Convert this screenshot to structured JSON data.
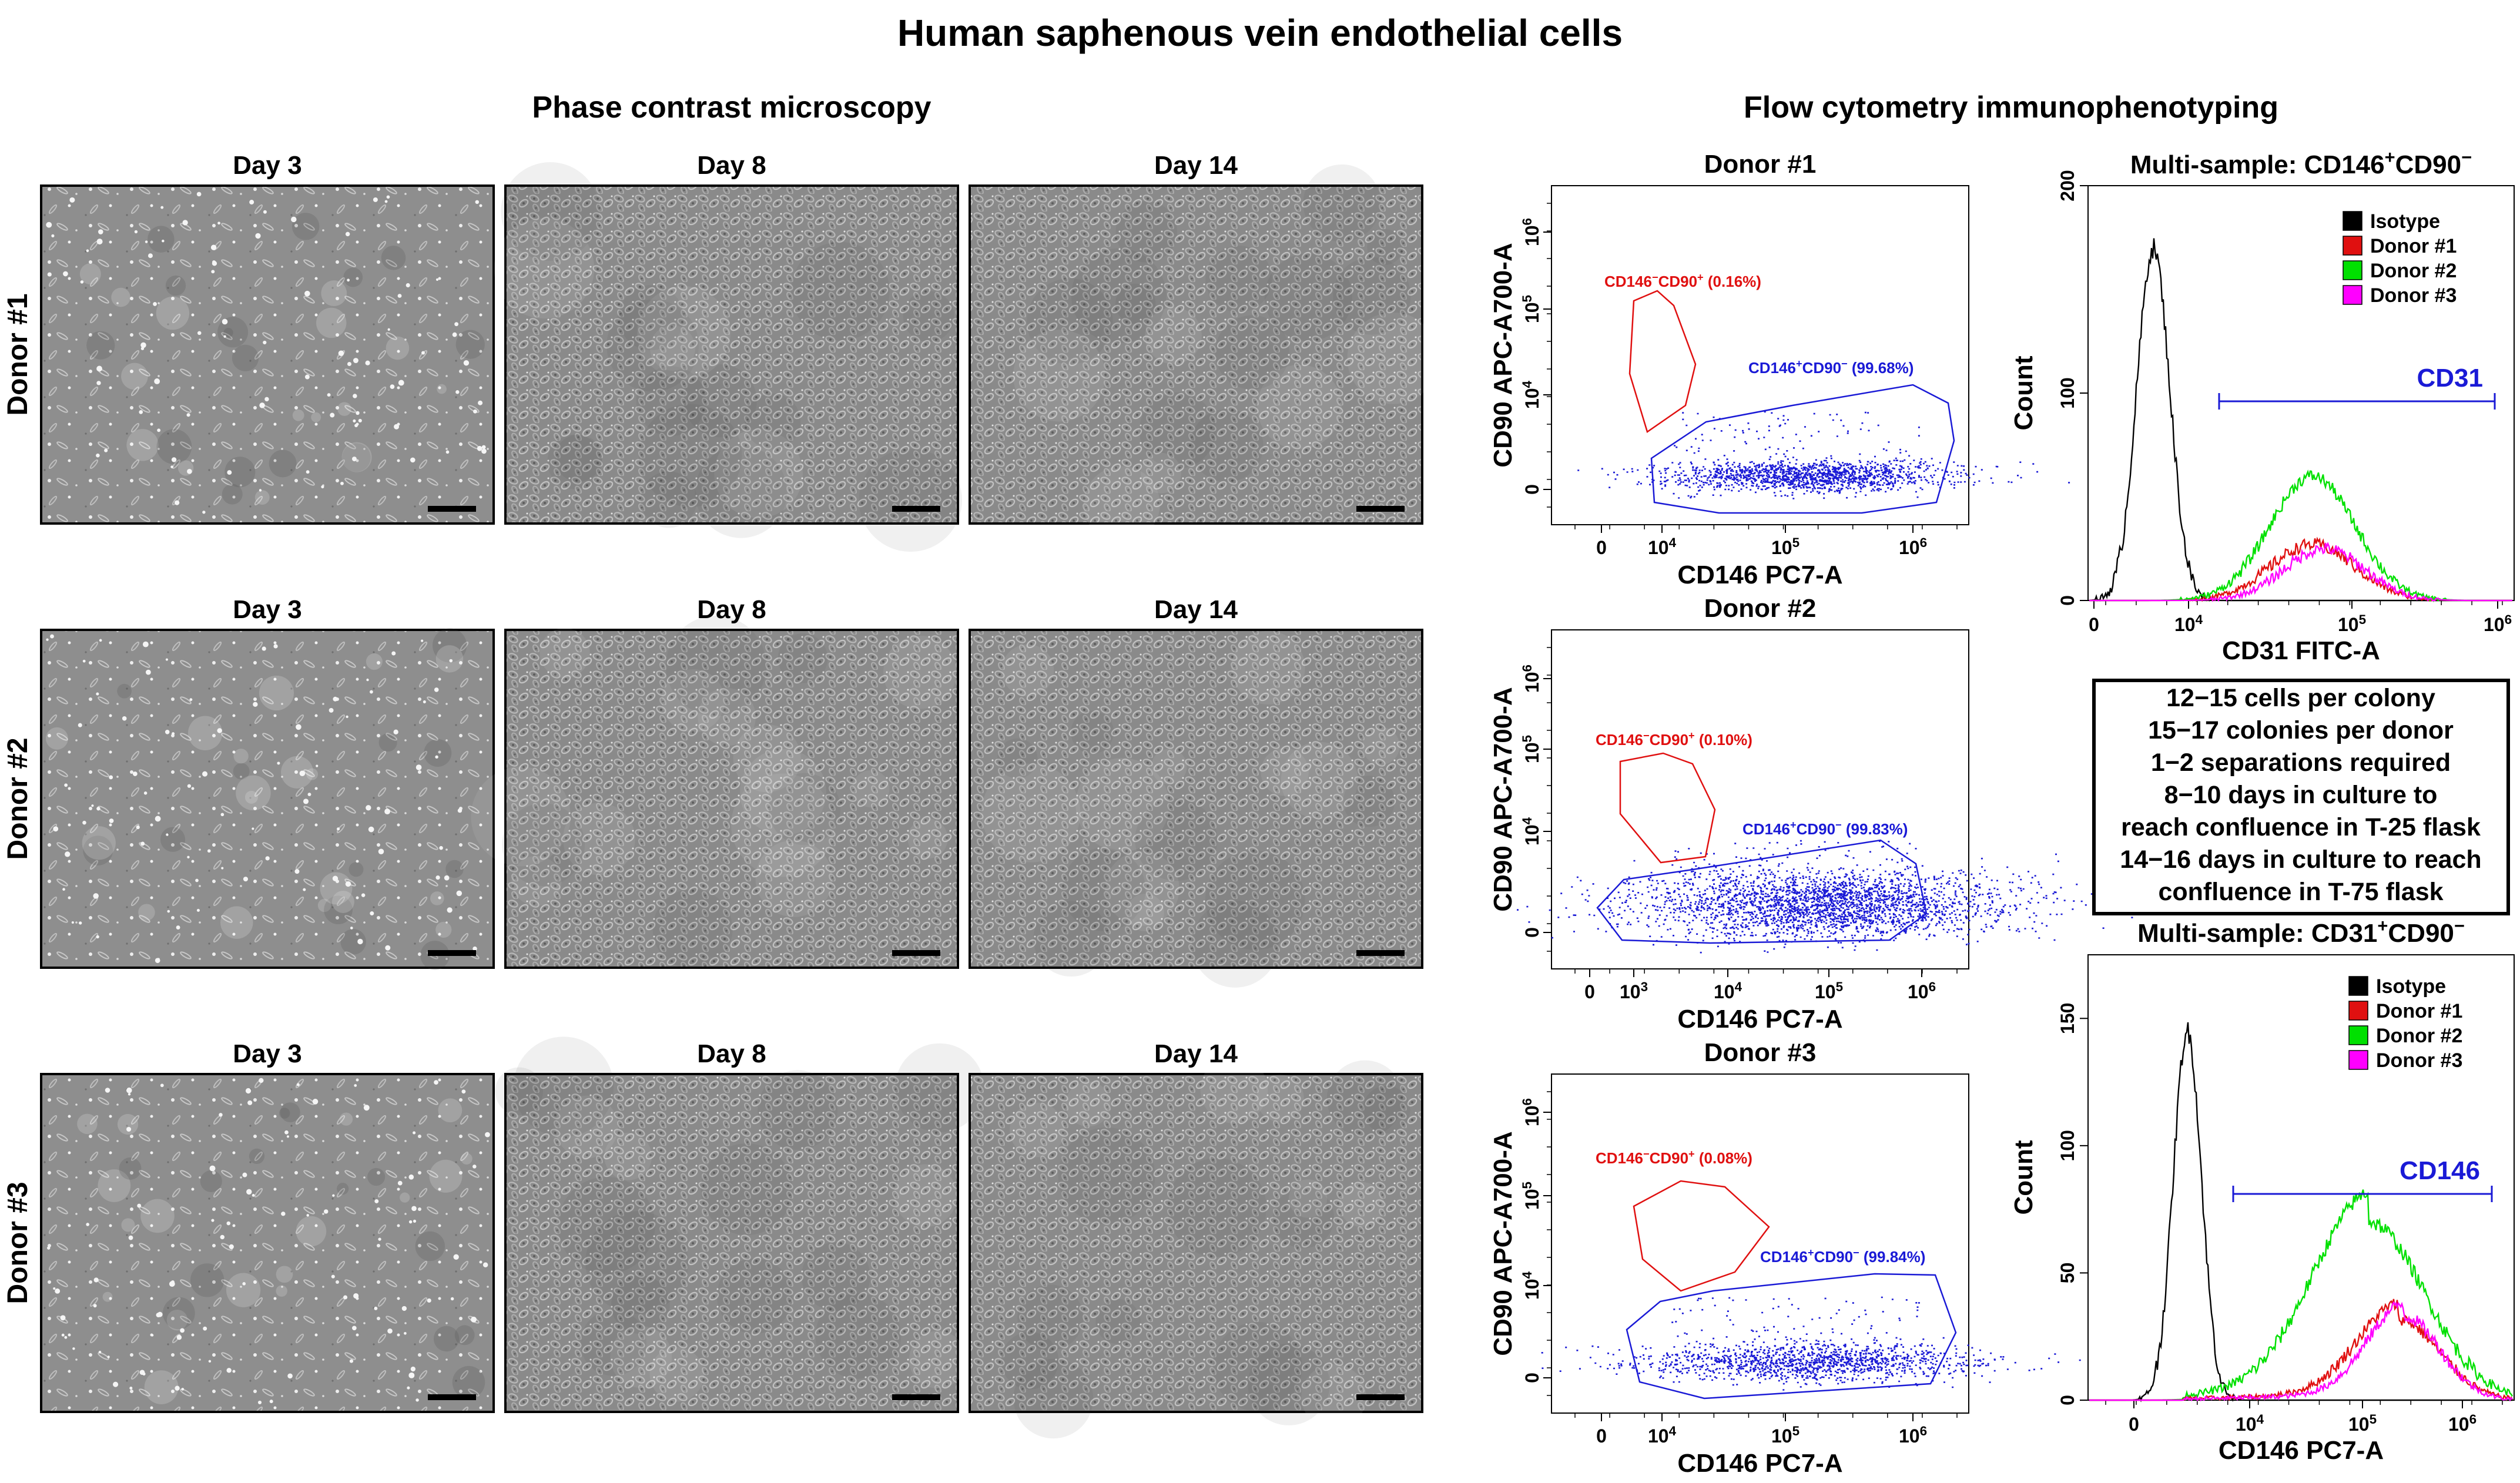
{
  "figure": {
    "title": "Human saphenous vein endothelial cells",
    "left_section_title": "Phase contrast microscopy",
    "right_section_title": "Flow cytometry immunophenotyping"
  },
  "microscopy": {
    "day_labels": [
      "Day 3",
      "Day 8",
      "Day 14"
    ],
    "rows": [
      {
        "donor": "Donor #1",
        "densities": [
          0.22,
          0.72,
          0.95
        ]
      },
      {
        "donor": "Donor #2",
        "densities": [
          0.28,
          0.95,
          0.95
        ]
      },
      {
        "donor": "Donor #3",
        "densities": [
          0.25,
          0.9,
          0.95
        ]
      }
    ]
  },
  "colors": {
    "blue": "#1a1ad6",
    "red": "#e01010",
    "green": "#00e000",
    "magenta": "#ff00ff",
    "black": "#000000"
  },
  "scatter_panels": [
    {
      "title": "Donor #1",
      "xlabel": "CD146 PC7-A",
      "ylabel": "CD90 APC-A700-A",
      "xticks": [
        {
          "base": "0",
          "exp": ""
        },
        {
          "base": "10",
          "exp": "4"
        },
        {
          "base": "10",
          "exp": "5"
        },
        {
          "base": "10",
          "exp": "6"
        }
      ],
      "yticks": [
        {
          "base": "0",
          "exp": ""
        },
        {
          "base": "10",
          "exp": "4"
        },
        {
          "base": "10",
          "exp": "5"
        },
        {
          "base": "10",
          "exp": "6"
        }
      ],
      "gate_red": {
        "neg": "CD146",
        "pos": "CD90",
        "pct": "(0.16%)"
      },
      "gate_blue": {
        "pos": "CD146",
        "neg": "CD90",
        "pct": "(99.68%)"
      }
    },
    {
      "title": "Donor #2",
      "xlabel": "CD146 PC7-A",
      "ylabel": "CD90 APC-A700-A",
      "xticks": [
        {
          "base": "0",
          "exp": ""
        },
        {
          "base": "10",
          "exp": "3"
        },
        {
          "base": "10",
          "exp": "4"
        },
        {
          "base": "10",
          "exp": "5"
        },
        {
          "base": "10",
          "exp": "6"
        }
      ],
      "yticks": [
        {
          "base": "0",
          "exp": ""
        },
        {
          "base": "10",
          "exp": "4"
        },
        {
          "base": "10",
          "exp": "5"
        },
        {
          "base": "10",
          "exp": "6"
        }
      ],
      "gate_red": {
        "neg": "CD146",
        "pos": "CD90",
        "pct": "(0.10%)"
      },
      "gate_blue": {
        "pos": "CD146",
        "neg": "CD90",
        "pct": "(99.83%)"
      }
    },
    {
      "title": "Donor #3",
      "xlabel": "CD146 PC7-A",
      "ylabel": "CD90 APC-A700-A",
      "xticks": [
        {
          "base": "0",
          "exp": ""
        },
        {
          "base": "10",
          "exp": "4"
        },
        {
          "base": "10",
          "exp": "5"
        },
        {
          "base": "10",
          "exp": "6"
        }
      ],
      "yticks": [
        {
          "base": "0",
          "exp": ""
        },
        {
          "base": "10",
          "exp": "4"
        },
        {
          "base": "10",
          "exp": "5"
        },
        {
          "base": "10",
          "exp": "6"
        }
      ],
      "gate_red": {
        "neg": "CD146",
        "pos": "CD90",
        "pct": "(0.08%)"
      },
      "gate_blue": {
        "pos": "CD146",
        "neg": "CD90",
        "pct": "(99.84%)"
      }
    }
  ],
  "histograms": [
    {
      "title": {
        "m1": "CD146",
        "s1": "+",
        "m2": "CD90",
        "s2": "−",
        "prefix": "Multi-sample: "
      },
      "xlabel": "CD31 FITC-A",
      "ylabel": "Count",
      "yticks": [
        "0",
        "100",
        "200"
      ],
      "ylim": [
        0,
        200
      ],
      "xticks": [
        {
          "base": "0",
          "exp": ""
        },
        {
          "base": "10",
          "exp": "4"
        },
        {
          "base": "10",
          "exp": "5"
        },
        {
          "base": "10",
          "exp": "6"
        }
      ],
      "marker_label": "CD31",
      "legend": [
        "Isotype",
        "Donor #1",
        "Donor #2",
        "Donor #3"
      ]
    },
    {
      "title": {
        "m1": "CD31",
        "s1": "+",
        "m2": "CD90",
        "s2": "−",
        "prefix": "Multi-sample: "
      },
      "xlabel": "CD146 PC7-A",
      "ylabel": "Count",
      "yticks": [
        "0",
        "50",
        "100",
        "150"
      ],
      "ylim": [
        0,
        175
      ],
      "xticks": [
        {
          "base": "0",
          "exp": ""
        },
        {
          "base": "10",
          "exp": "4"
        },
        {
          "base": "10",
          "exp": "5"
        },
        {
          "base": "10",
          "exp": "6"
        }
      ],
      "marker_label": "CD146",
      "legend": [
        "Isotype",
        "Donor #1",
        "Donor #2",
        "Donor #3"
      ]
    }
  ],
  "stats_box": {
    "lines": [
      "12−15 cells per colony",
      "15−17 colonies per donor",
      "1−2 separations required",
      "8−10 days in culture to",
      "reach confluence in T-25 flask",
      "14−16 days in culture to reach",
      "confluence in T-75 flask"
    ]
  },
  "chart_data": [
    {
      "type": "histogram",
      "title": "Multi-sample: CD146+CD90−",
      "xlabel": "CD31 FITC-A",
      "ylabel": "Count",
      "ylim": [
        0,
        200
      ],
      "series": [
        {
          "name": "Isotype",
          "color": "#000000",
          "peak_x": 6000,
          "peak_count": 170
        },
        {
          "name": "Donor #1",
          "color": "#e01010",
          "peak_x": 60000,
          "peak_count": 27
        },
        {
          "name": "Donor #2",
          "color": "#00e000",
          "peak_x": 60000,
          "peak_count": 60
        },
        {
          "name": "Donor #3",
          "color": "#ff00ff",
          "peak_x": 70000,
          "peak_count": 25
        }
      ]
    },
    {
      "type": "histogram",
      "title": "Multi-sample: CD31+CD90−",
      "xlabel": "CD146 PC7-A",
      "ylabel": "Count",
      "ylim": [
        0,
        175
      ],
      "series": [
        {
          "name": "Isotype",
          "color": "#000000",
          "peak_x": 3000,
          "peak_count": 145
        },
        {
          "name": "Donor #1",
          "color": "#e01010",
          "peak_x": 300000,
          "peak_count": 32
        },
        {
          "name": "Donor #2",
          "color": "#00e000",
          "peak_x": 180000,
          "peak_count": 70
        },
        {
          "name": "Donor #3",
          "color": "#ff00ff",
          "peak_x": 320000,
          "peak_count": 33
        }
      ]
    },
    {
      "type": "scatter",
      "title": "Donor #1",
      "xlabel": "CD146 PC7-A",
      "ylabel": "CD90 APC-A700-A",
      "gates": [
        {
          "name": "CD146−CD90+",
          "pct": 0.16
        },
        {
          "name": "CD146+CD90−",
          "pct": 99.68
        }
      ]
    },
    {
      "type": "scatter",
      "title": "Donor #2",
      "xlabel": "CD146 PC7-A",
      "ylabel": "CD90 APC-A700-A",
      "gates": [
        {
          "name": "CD146−CD90+",
          "pct": 0.1
        },
        {
          "name": "CD146+CD90−",
          "pct": 99.83
        }
      ]
    },
    {
      "type": "scatter",
      "title": "Donor #3",
      "xlabel": "CD146 PC7-A",
      "ylabel": "CD90 APC-A700-A",
      "gates": [
        {
          "name": "CD146−CD90+",
          "pct": 0.08
        },
        {
          "name": "CD146+CD90−",
          "pct": 99.84
        }
      ]
    }
  ]
}
